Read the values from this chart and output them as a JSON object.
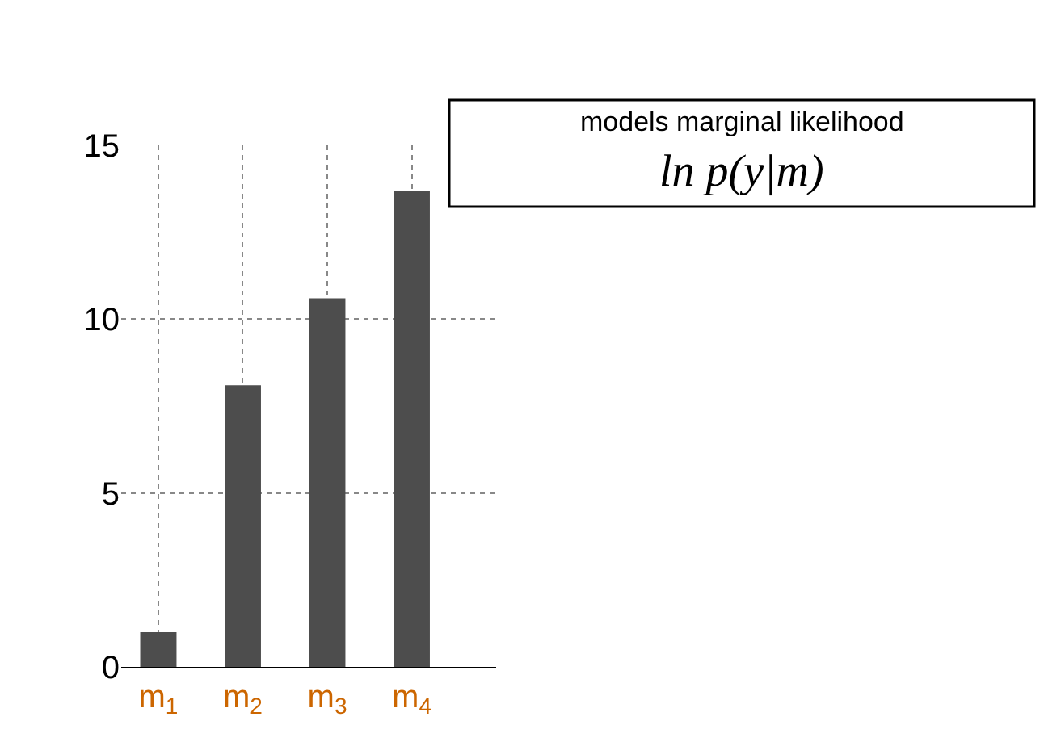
{
  "chart_data": {
    "type": "bar",
    "title": "models marginal likelihood",
    "subtitle": "ln p(y|m)",
    "categories": [
      "m$_{1}$",
      "m$_{2}$",
      "m$_{3}$",
      "m$_{4}$"
    ],
    "values": [
      1.0,
      8.1,
      10.6,
      13.7
    ],
    "color": "#4d4d4d",
    "ylim": [
      0,
      15
    ],
    "yticks": [
      0,
      5,
      10,
      15
    ],
    "grid": true
  }
}
